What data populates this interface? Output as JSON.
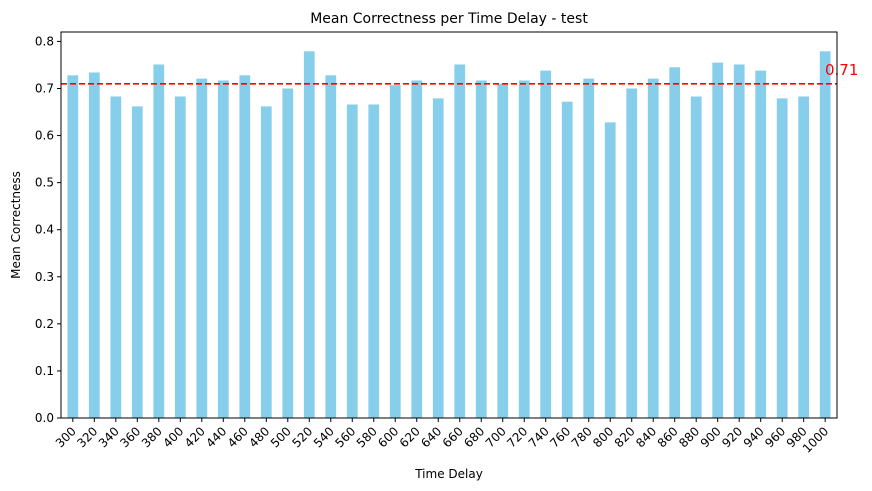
{
  "chart_data": {
    "type": "bar",
    "title": "Mean Correctness per Time Delay - test",
    "xlabel": "Time Delay",
    "ylabel": "Mean Correctness",
    "ylim": [
      0,
      0.82
    ],
    "yticks": [
      0.0,
      0.1,
      0.2,
      0.3,
      0.4,
      0.5,
      0.6,
      0.7,
      0.8
    ],
    "ytick_labels": [
      "0.0",
      "0.1",
      "0.2",
      "0.3",
      "0.4",
      "0.5",
      "0.6",
      "0.7",
      "0.8"
    ],
    "categories": [
      "300",
      "320",
      "340",
      "360",
      "380",
      "400",
      "420",
      "440",
      "460",
      "480",
      "500",
      "520",
      "540",
      "560",
      "580",
      "600",
      "620",
      "640",
      "660",
      "680",
      "700",
      "720",
      "740",
      "760",
      "780",
      "800",
      "820",
      "840",
      "860",
      "880",
      "900",
      "920",
      "940",
      "960",
      "980",
      "1000"
    ],
    "values": [
      0.728,
      0.734,
      0.683,
      0.662,
      0.751,
      0.683,
      0.721,
      0.717,
      0.728,
      0.662,
      0.7,
      0.779,
      0.728,
      0.666,
      0.666,
      0.707,
      0.717,
      0.679,
      0.751,
      0.717,
      0.71,
      0.717,
      0.738,
      0.672,
      0.721,
      0.628,
      0.7,
      0.721,
      0.745,
      0.683,
      0.755,
      0.751,
      0.738,
      0.679,
      0.683,
      0.779
    ],
    "bar_color": "#87ceeb",
    "reference_line": {
      "value": 0.71,
      "label": "0.71",
      "color": "#ff0000",
      "style": "dashed"
    },
    "grid": false,
    "legend": "none"
  }
}
